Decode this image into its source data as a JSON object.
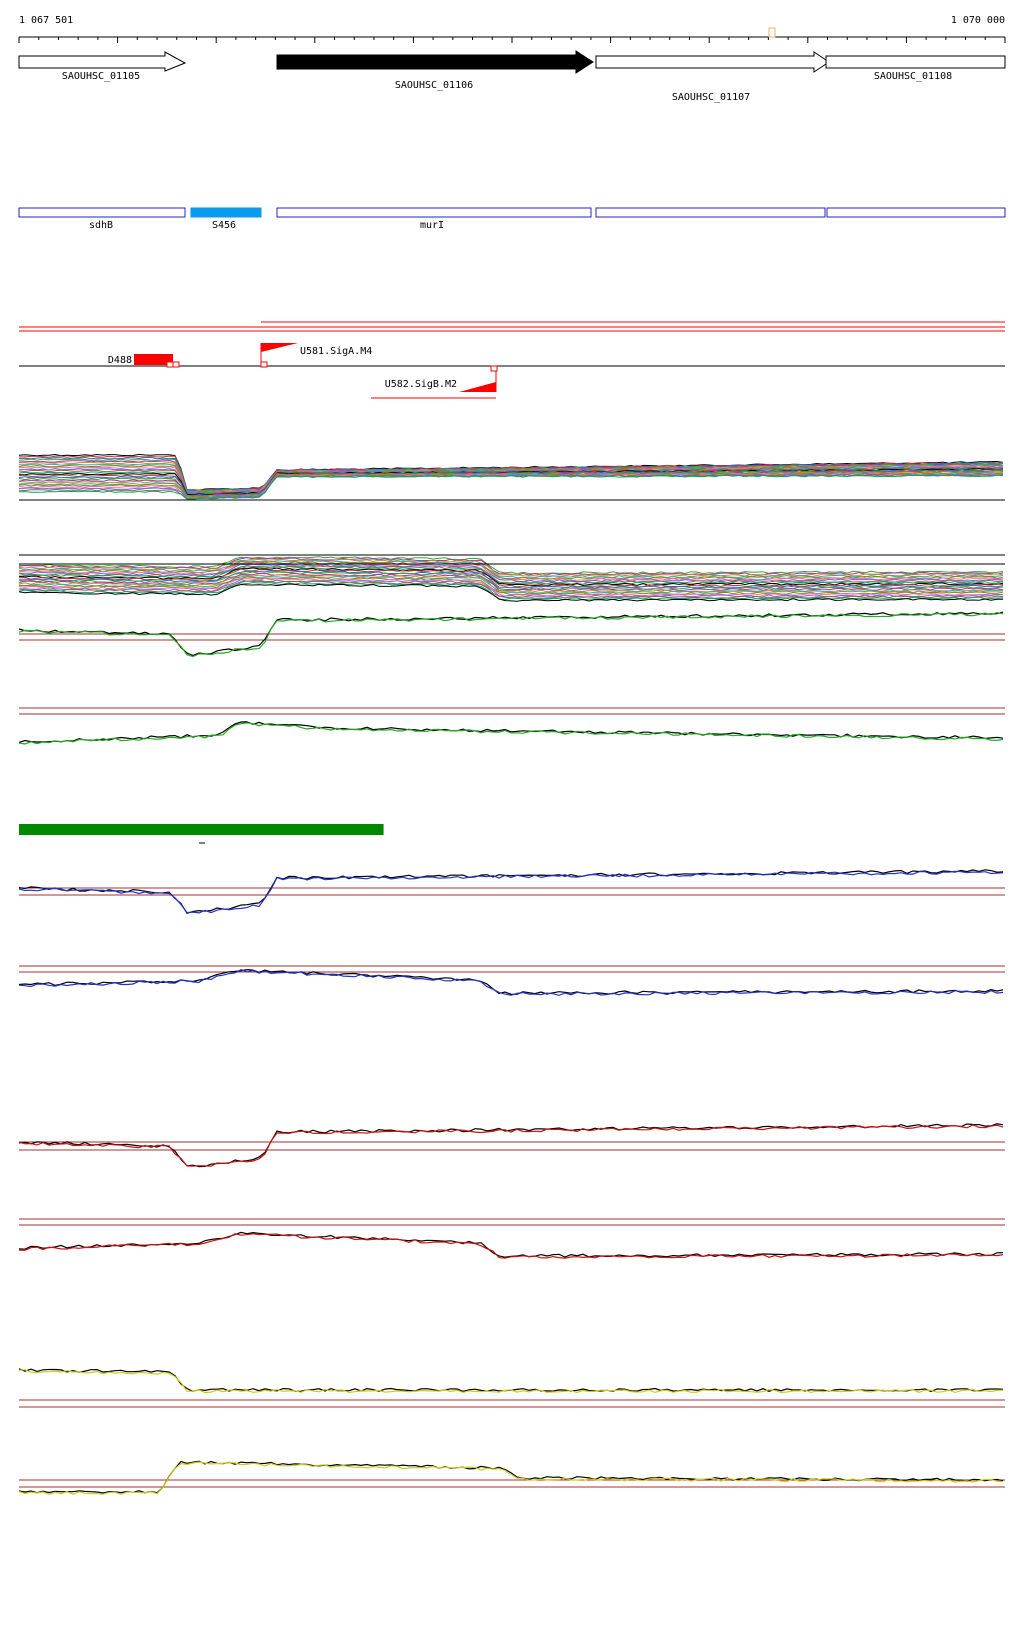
{
  "ruler": {
    "start_label": "1 067 501",
    "end_label": "1 070 000",
    "start": 1067501,
    "end": 1070000
  },
  "genes": [
    {
      "label": "SAOUHSC_01105",
      "start": 1067501,
      "end": 1067920,
      "filled": false
    },
    {
      "label": "SAOUHSC_01106",
      "start": 1068153,
      "end": 1068962,
      "filled": true
    },
    {
      "label": "SAOUHSC_01107",
      "start": 1068968,
      "end": 1069555,
      "filled": false
    },
    {
      "label": "SAOUHSC_01108",
      "start": 1069558,
      "end": 1070000,
      "filled": false
    }
  ],
  "annotations": [
    {
      "label": "sdhB",
      "start": 1067501,
      "end": 1067920,
      "filled": false
    },
    {
      "label": "S456",
      "start": 1067937,
      "end": 1068113,
      "filled": true
    },
    {
      "label": "murI",
      "start": 1068153,
      "end": 1068962,
      "filled": false
    },
    {
      "label": "",
      "start": 1068968,
      "end": 1069552,
      "filled": false
    },
    {
      "label": "",
      "start": 1069555,
      "end": 1070000,
      "filled": false
    }
  ],
  "features": [
    {
      "label": "D488",
      "type": "downregulated"
    },
    {
      "label": "U581.SigA.M4",
      "type": "promoter-forward"
    },
    {
      "label": "U582.SigB.M2",
      "type": "promoter-reverse"
    }
  ],
  "green_bar": {
    "start": 1067501,
    "end": 1068425
  },
  "colors": {
    "gene_filled": "#000000",
    "annotation_stroke": "#2222cc",
    "annotation_fill": "#0a9aee",
    "feature_red": "#ff0000",
    "threshold_line": "#a03030",
    "green_bar": "#008800",
    "blue_series": "#2233cc",
    "red_series": "#cc1111",
    "green_series": "#22aa22",
    "yellow_series": "#cccc11"
  }
}
